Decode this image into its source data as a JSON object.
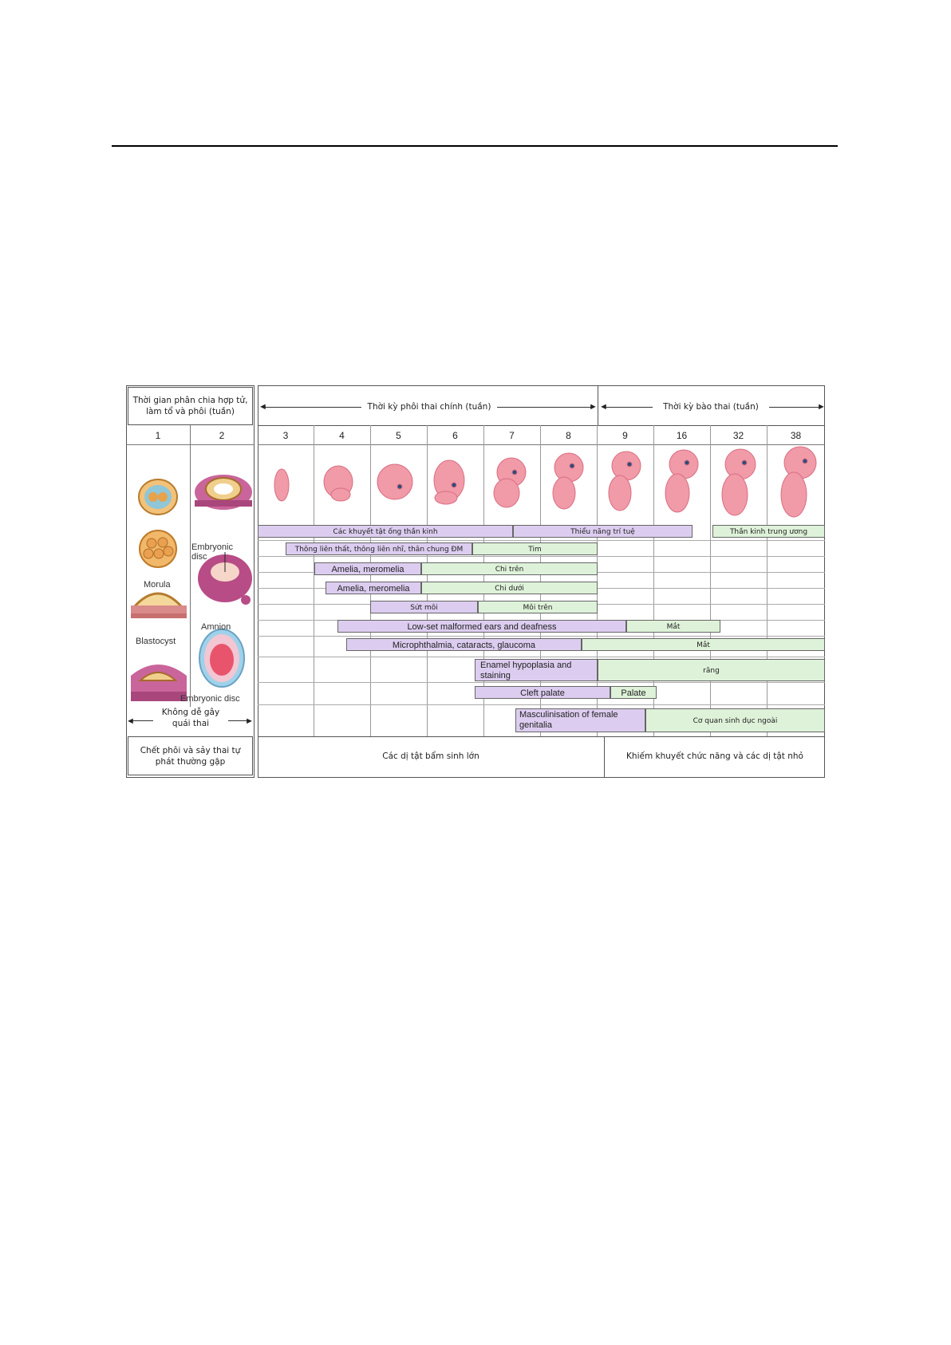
{
  "left_box": {
    "header": "Thời gian phân chia hợp tử, làm tổ và phôi (tuần)",
    "weeks": [
      "1",
      "2"
    ],
    "labels": {
      "embryonic_disc_top": "Embryonic disc",
      "morula": "Morula",
      "amnion": "Amnion",
      "blastocyst": "Blastocyst",
      "embryonic_disc_bottom": "Embryonic disc"
    },
    "no_teratogen": "Không dễ gây quái thai",
    "footer": "Chết phôi và sảy thai tự phát thường gặp"
  },
  "periods": {
    "embryonic": "Thời kỳ phôi thai chính (tuần)",
    "fetal": "Thời kỳ bào thai (tuần)"
  },
  "weeks": [
    "3",
    "4",
    "5",
    "6",
    "7",
    "8",
    "9",
    "16",
    "32",
    "38"
  ],
  "bars": {
    "neural_tube": "Các khuyết tật ống thần kinh",
    "intellectual": "Thiểu năng trí tuệ",
    "cns": "Thần kinh trung ương",
    "heart_defects": "Thông liên thất, thông liên nhĩ, thân chung ĐM",
    "heart": "Tim",
    "amelia_upper": "Amelia, meromelia",
    "upper_limb": "Chi trên",
    "amelia_lower": "Amelia, meromelia",
    "lower_limb": "Chi dưới",
    "cleft_lip": "Sứt môi",
    "upper_lip": "Môi trên",
    "ears": "Low-set malformed ears and deafness",
    "eye1": "Mắt",
    "microphthalmia": "Microphthalmia, cataracts, glaucoma",
    "eye2": "Mắt",
    "enamel": "Enamel hypoplasia and staining",
    "teeth": "răng",
    "cleft_palate": "Cleft palate",
    "palate": "Palate",
    "masculinisation": "Masculinisation of female genitalia",
    "genitalia": "Cơ quan sinh dục ngoài"
  },
  "footer": {
    "major": "Các dị tật bẩm sinh lớn",
    "minor": "Khiếm khuyết chức năng và các dị tật nhỏ"
  },
  "colors": {
    "purple": "#dccdf0",
    "green": "#def2d9",
    "embryo": "#f19aa8"
  }
}
